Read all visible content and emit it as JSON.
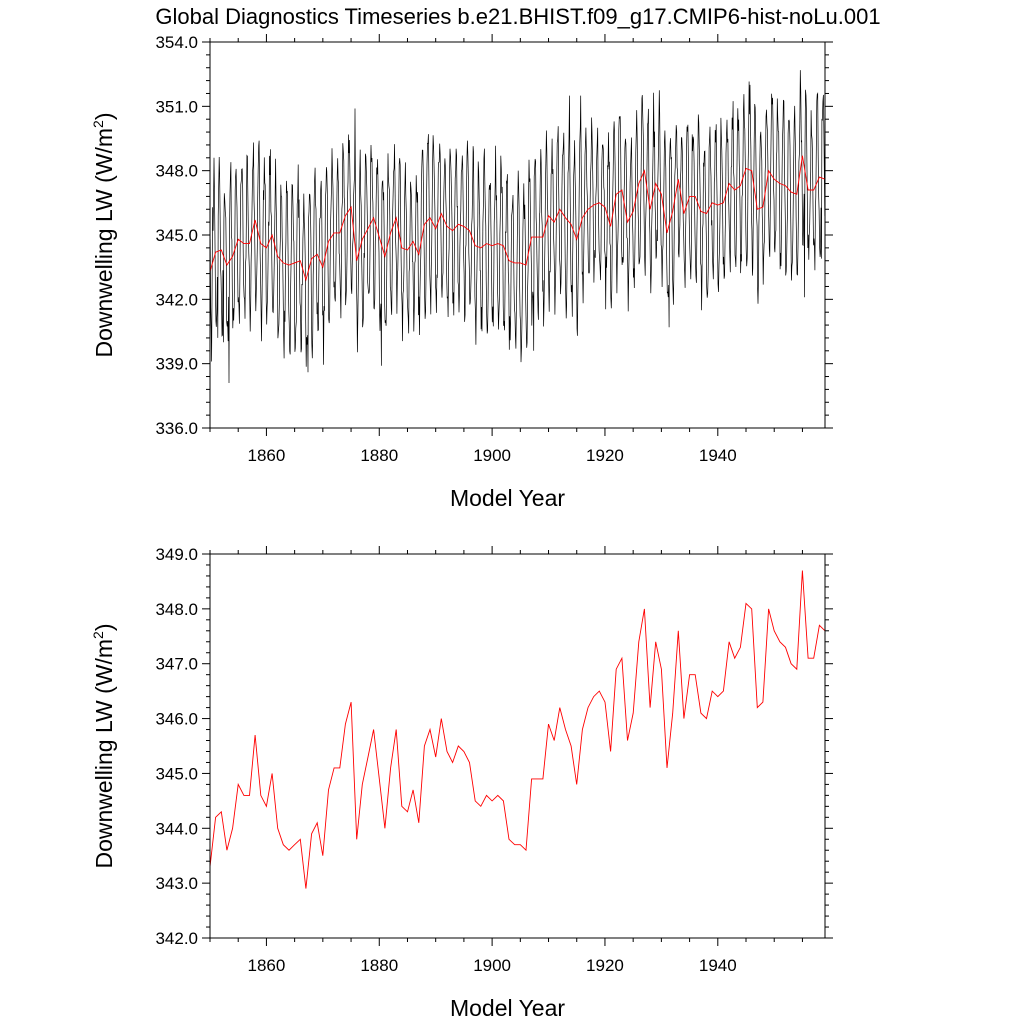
{
  "title": "Global Diagnostics Timeseries b.e21.BHIST.f09_g17.CMIP6-hist-noLu.001",
  "chart_data": [
    {
      "type": "line",
      "xlabel": "Model Year",
      "ylabel": "Downwelling LW (W/m",
      "ylabel_sup": "2",
      "ylabel_close": ")",
      "xlim": [
        1850,
        1959
      ],
      "ylim": [
        336,
        354
      ],
      "xticks": [
        1860,
        1880,
        1900,
        1920,
        1940
      ],
      "xtick_labels": [
        "1860",
        "1880",
        "1900",
        "1920",
        "1940"
      ],
      "yticks": [
        336,
        339,
        342,
        345,
        348,
        351,
        354
      ],
      "ytick_labels": [
        "336.0",
        "339.0",
        "342.0",
        "345.0",
        "348.0",
        "351.0",
        "354.0"
      ],
      "grid": false,
      "series": [
        {
          "color": "#000000",
          "stroke": "monthly",
          "seasonal_amplitude": 3.6,
          "values": [
            {
              "x": 1850.042,
              "y": 344.8
            },
            {
              "x": 1850.125,
              "y": 341.6
            },
            {
              "x": 1850.292,
              "y": 339.1
            },
            {
              "x": 1850.542,
              "y": 345.2
            },
            {
              "x": 1850.708,
              "y": 348.6
            },
            {
              "x": 1851.375,
              "y": 340.2
            },
            {
              "x": 1851.708,
              "y": 347.9
            },
            {
              "x": 1852.375,
              "y": 340.0
            },
            {
              "x": 1853.375,
              "y": 338.1
            },
            {
              "x": 1853.708,
              "y": 348.4
            },
            {
              "x": 1858.708,
              "y": 349.4
            },
            {
              "x": 1867.375,
              "y": 338.6
            },
            {
              "x": 1875.708,
              "y": 350.9
            },
            {
              "x": 1880.375,
              "y": 338.9
            },
            {
              "x": 1907.375,
              "y": 339.6
            },
            {
              "x": 1913.708,
              "y": 351.5
            },
            {
              "x": 1915.708,
              "y": 351.5
            },
            {
              "x": 1931.375,
              "y": 340.7
            },
            {
              "x": 1945.708,
              "y": 352.0
            },
            {
              "x": 1955.375,
              "y": 342.1
            },
            {
              "x": 1957.708,
              "y": 351.6
            },
            {
              "x": 1958.375,
              "y": 343.9
            }
          ]
        },
        {
          "color": "#ff0000",
          "stroke": "annual",
          "x": [
            1850,
            1851,
            1852,
            1853,
            1854,
            1855,
            1856,
            1857,
            1858,
            1859,
            1860,
            1861,
            1862,
            1863,
            1864,
            1865,
            1866,
            1867,
            1868,
            1869,
            1870,
            1871,
            1872,
            1873,
            1874,
            1875,
            1876,
            1877,
            1878,
            1879,
            1880,
            1881,
            1882,
            1883,
            1884,
            1885,
            1886,
            1887,
            1888,
            1889,
            1890,
            1891,
            1892,
            1893,
            1894,
            1895,
            1896,
            1897,
            1898,
            1899,
            1900,
            1901,
            1902,
            1903,
            1904,
            1905,
            1906,
            1907,
            1908,
            1909,
            1910,
            1911,
            1912,
            1913,
            1914,
            1915,
            1916,
            1917,
            1918,
            1919,
            1920,
            1921,
            1922,
            1923,
            1924,
            1925,
            1926,
            1927,
            1928,
            1929,
            1930,
            1931,
            1932,
            1933,
            1934,
            1935,
            1936,
            1937,
            1938,
            1939,
            1940,
            1941,
            1942,
            1943,
            1944,
            1945,
            1946,
            1947,
            1948,
            1949,
            1950,
            1951,
            1952,
            1953,
            1954,
            1955,
            1956,
            1957,
            1958,
            1959
          ],
          "values": [
            343.3,
            344.2,
            344.3,
            343.6,
            344.0,
            344.8,
            344.6,
            344.6,
            345.7,
            344.6,
            344.4,
            345.0,
            344.0,
            343.7,
            343.6,
            343.7,
            343.8,
            342.9,
            343.9,
            344.1,
            343.5,
            344.7,
            345.1,
            345.1,
            345.9,
            346.3,
            343.8,
            344.8,
            345.3,
            345.8,
            344.9,
            344.0,
            345.1,
            345.8,
            344.4,
            344.3,
            344.7,
            344.1,
            345.5,
            345.8,
            345.3,
            346.0,
            345.4,
            345.2,
            345.5,
            345.4,
            345.2,
            344.5,
            344.4,
            344.6,
            344.5,
            344.6,
            344.5,
            343.8,
            343.7,
            343.7,
            343.6,
            344.9,
            344.9,
            344.9,
            345.9,
            345.6,
            346.2,
            345.8,
            345.5,
            344.8,
            345.8,
            346.2,
            346.4,
            346.5,
            346.3,
            345.4,
            346.9,
            347.1,
            345.6,
            346.1,
            347.4,
            348.0,
            346.2,
            347.4,
            346.9,
            345.1,
            346.1,
            347.6,
            346.0,
            346.8,
            346.8,
            346.1,
            346.0,
            346.5,
            346.4,
            346.5,
            347.4,
            347.1,
            347.3,
            348.1,
            348.0,
            346.2,
            346.3,
            348.0,
            347.6,
            347.4,
            347.3,
            347.0,
            346.9,
            348.7,
            347.1,
            347.1,
            347.7,
            347.6
          ]
        }
      ]
    },
    {
      "type": "line",
      "xlabel": "Model Year",
      "ylabel": "Downwelling LW (W/m",
      "ylabel_sup": "2",
      "ylabel_close": ")",
      "xlim": [
        1850,
        1959
      ],
      "ylim": [
        342,
        349
      ],
      "xticks": [
        1860,
        1880,
        1900,
        1920,
        1940
      ],
      "xtick_labels": [
        "1860",
        "1880",
        "1900",
        "1920",
        "1940"
      ],
      "yticks": [
        342,
        343,
        344,
        345,
        346,
        347,
        348,
        349
      ],
      "ytick_labels": [
        "342.0",
        "343.0",
        "344.0",
        "345.0",
        "346.0",
        "347.0",
        "348.0",
        "349.0"
      ],
      "grid": false,
      "series": [
        {
          "color": "#ff0000",
          "stroke": "annual",
          "x": [
            1850,
            1851,
            1852,
            1853,
            1854,
            1855,
            1856,
            1857,
            1858,
            1859,
            1860,
            1861,
            1862,
            1863,
            1864,
            1865,
            1866,
            1867,
            1868,
            1869,
            1870,
            1871,
            1872,
            1873,
            1874,
            1875,
            1876,
            1877,
            1878,
            1879,
            1880,
            1881,
            1882,
            1883,
            1884,
            1885,
            1886,
            1887,
            1888,
            1889,
            1890,
            1891,
            1892,
            1893,
            1894,
            1895,
            1896,
            1897,
            1898,
            1899,
            1900,
            1901,
            1902,
            1903,
            1904,
            1905,
            1906,
            1907,
            1908,
            1909,
            1910,
            1911,
            1912,
            1913,
            1914,
            1915,
            1916,
            1917,
            1918,
            1919,
            1920,
            1921,
            1922,
            1923,
            1924,
            1925,
            1926,
            1927,
            1928,
            1929,
            1930,
            1931,
            1932,
            1933,
            1934,
            1935,
            1936,
            1937,
            1938,
            1939,
            1940,
            1941,
            1942,
            1943,
            1944,
            1945,
            1946,
            1947,
            1948,
            1949,
            1950,
            1951,
            1952,
            1953,
            1954,
            1955,
            1956,
            1957,
            1958,
            1959
          ],
          "values": [
            343.3,
            344.2,
            344.3,
            343.6,
            344.0,
            344.8,
            344.6,
            344.6,
            345.7,
            344.6,
            344.4,
            345.0,
            344.0,
            343.7,
            343.6,
            343.7,
            343.8,
            342.9,
            343.9,
            344.1,
            343.5,
            344.7,
            345.1,
            345.1,
            345.9,
            346.3,
            343.8,
            344.8,
            345.3,
            345.8,
            344.9,
            344.0,
            345.1,
            345.8,
            344.4,
            344.3,
            344.7,
            344.1,
            345.5,
            345.8,
            345.3,
            346.0,
            345.4,
            345.2,
            345.5,
            345.4,
            345.2,
            344.5,
            344.4,
            344.6,
            344.5,
            344.6,
            344.5,
            343.8,
            343.7,
            343.7,
            343.6,
            344.9,
            344.9,
            344.9,
            345.9,
            345.6,
            346.2,
            345.8,
            345.5,
            344.8,
            345.8,
            346.2,
            346.4,
            346.5,
            346.3,
            345.4,
            346.9,
            347.1,
            345.6,
            346.1,
            347.4,
            348.0,
            346.2,
            347.4,
            346.9,
            345.1,
            346.1,
            347.6,
            346.0,
            346.8,
            346.8,
            346.1,
            346.0,
            346.5,
            346.4,
            346.5,
            347.4,
            347.1,
            347.3,
            348.1,
            348.0,
            346.2,
            346.3,
            348.0,
            347.6,
            347.4,
            347.3,
            347.0,
            346.9,
            348.7,
            347.1,
            347.1,
            347.7,
            347.6
          ]
        }
      ]
    }
  ]
}
